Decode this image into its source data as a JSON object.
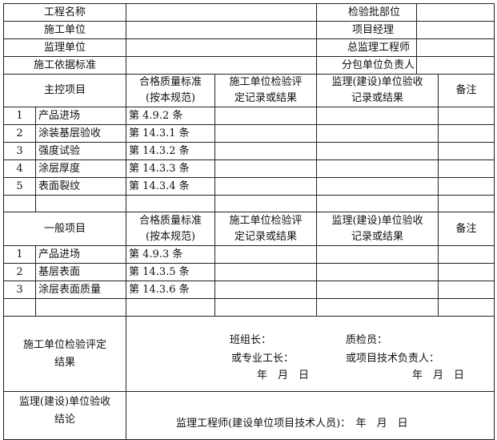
{
  "header_rows": [
    {
      "label": "工程名称",
      "value": "",
      "right_label": "检验批部位",
      "right_value": ""
    },
    {
      "label": "施工单位",
      "value": "",
      "right_label": "项目经理",
      "right_value": ""
    },
    {
      "label": "监理单位",
      "value": "",
      "right_label": "总监理工程师",
      "right_value": ""
    },
    {
      "label": "施工依据标准",
      "value": "",
      "right_label": "分包单位负责人",
      "right_value": ""
    }
  ],
  "columns": {
    "standard": [
      "合格质量标准",
      "(按本规范)"
    ],
    "contractor": [
      "施工单位检验评",
      "定记录或结果"
    ],
    "supervisor": [
      "监理(建设)单位验收",
      "记录或结果"
    ],
    "remarks": "备注"
  },
  "main_section": {
    "title": "主控项目",
    "items": [
      {
        "no": "1",
        "name": "产品进场",
        "standard": "第 4.9.2 条"
      },
      {
        "no": "2",
        "name": "涂装基层验收",
        "standard": "第 14.3.1 条"
      },
      {
        "no": "3",
        "name": "强度试验",
        "standard": "第 14.3.2 条"
      },
      {
        "no": "4",
        "name": "涂层厚度",
        "standard": "第 14.3.3 条"
      },
      {
        "no": "5",
        "name": "表面裂纹",
        "standard": "第 14.3.4 条"
      }
    ]
  },
  "general_section": {
    "title": "一般项目",
    "items": [
      {
        "no": "1",
        "name": "产品进场",
        "standard": "第 4.9.3 条"
      },
      {
        "no": "2",
        "name": "基层表面",
        "standard": "第 14.3.5 条"
      },
      {
        "no": "3",
        "name": "涂层表面质量",
        "standard": "第 14.3.6 条"
      }
    ]
  },
  "contractor_result": {
    "label": [
      "施工单位检验评定",
      "结果"
    ],
    "team_leader": "班组长：",
    "inspector": "质检员：",
    "foreman": "或专业工长：",
    "tech_lead": "或项目技术负责人：",
    "date1": "年　月　日",
    "date2": "年　月　日"
  },
  "supervisor_conclusion": {
    "label": [
      "监理(建设)单位验收",
      "结论"
    ],
    "signer": "监理工程师(建设单位项目技术人员)：　年　月　日"
  }
}
